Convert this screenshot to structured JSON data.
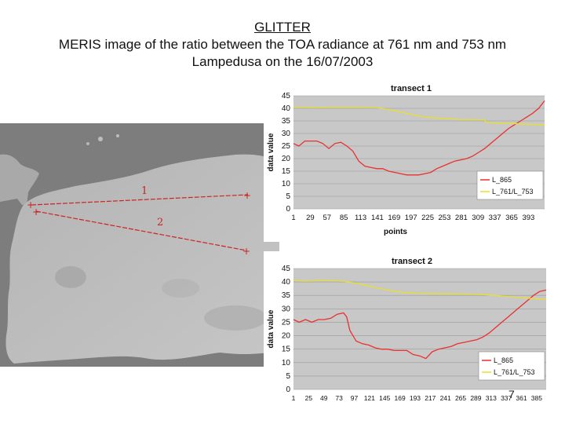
{
  "title": {
    "line1": "GLITTER",
    "line2": "MERIS image of the ratio between the TOA radiance at 761 nm and 753 nm",
    "line3": "Lampedusa on the 16/07/2003"
  },
  "map": {
    "transect_labels": [
      "1",
      "2"
    ]
  },
  "page_number": "7",
  "colors": {
    "series_red": "#e8312e",
    "series_yellow": "#e8e02a",
    "plot_bg": "#c8c8c8",
    "map_red": "#cc2222"
  },
  "chart_data": [
    {
      "type": "line",
      "title": "transect 1",
      "xlabel": "points",
      "ylabel": "data value",
      "ylim": [
        0,
        45
      ],
      "yticks": [
        0,
        5,
        10,
        15,
        20,
        25,
        30,
        35,
        40,
        45
      ],
      "xlim": [
        1,
        420
      ],
      "xticks": [
        1,
        29,
        57,
        85,
        113,
        141,
        169,
        197,
        225,
        253,
        281,
        309,
        337,
        365,
        393
      ],
      "grid": true,
      "legend": "right",
      "series": [
        {
          "name": "L_865",
          "color": "#e8312e",
          "x": [
            1,
            10,
            20,
            30,
            40,
            50,
            60,
            70,
            80,
            90,
            100,
            110,
            120,
            130,
            140,
            150,
            160,
            170,
            180,
            190,
            200,
            210,
            220,
            230,
            240,
            250,
            260,
            270,
            280,
            290,
            300,
            310,
            320,
            330,
            340,
            350,
            360,
            370,
            380,
            390,
            400,
            410,
            420
          ],
          "y": [
            26,
            25,
            27,
            27,
            27,
            26,
            24,
            26,
            26.5,
            25,
            23,
            19,
            17,
            16.5,
            16,
            16,
            15,
            14.5,
            14,
            13.5,
            13.5,
            13.5,
            14,
            14.5,
            16,
            17,
            18,
            19,
            19.5,
            20,
            21,
            22.5,
            24,
            26,
            28,
            30,
            32,
            33.5,
            35,
            36.5,
            38,
            40,
            43
          ]
        },
        {
          "name": "L_761/L_753",
          "color": "#e8e02a",
          "x": [
            1,
            20,
            40,
            60,
            80,
            100,
            120,
            140,
            160,
            180,
            200,
            220,
            240,
            260,
            280,
            300,
            320,
            322,
            340,
            360,
            380,
            400,
            420
          ],
          "y": [
            40.5,
            40.5,
            40.3,
            40.5,
            40.5,
            40.5,
            40.5,
            40.3,
            39.5,
            38.5,
            37.5,
            36.5,
            36.2,
            35.8,
            35.6,
            35.5,
            35.5,
            34.5,
            34.2,
            34,
            33.8,
            33.6,
            33.5
          ]
        }
      ]
    },
    {
      "type": "line",
      "title": "transect 2",
      "xlabel": "points",
      "ylabel": "data value",
      "ylim": [
        0,
        45
      ],
      "yticks": [
        0,
        5,
        10,
        15,
        20,
        25,
        30,
        35,
        40,
        45
      ],
      "xlim": [
        1,
        400
      ],
      "xticks": [
        1,
        25,
        49,
        73,
        97,
        121,
        145,
        169,
        193,
        217,
        241,
        265,
        289,
        313,
        337,
        361,
        385
      ],
      "grid": true,
      "legend": "right",
      "series": [
        {
          "name": "L_865",
          "color": "#e8312e",
          "x": [
            1,
            10,
            20,
            30,
            40,
            50,
            60,
            70,
            80,
            85,
            90,
            100,
            110,
            120,
            130,
            140,
            150,
            160,
            170,
            180,
            190,
            200,
            210,
            220,
            230,
            240,
            250,
            260,
            270,
            280,
            290,
            300,
            310,
            320,
            330,
            340,
            350,
            360,
            370,
            380,
            390,
            400
          ],
          "y": [
            26,
            25,
            26,
            25,
            26,
            26,
            26.5,
            28,
            28.5,
            27,
            22,
            18,
            17,
            16.5,
            15.5,
            15,
            15,
            14.5,
            14.5,
            14.5,
            13,
            12.5,
            11.5,
            14,
            15,
            15.5,
            16,
            17,
            17.5,
            18,
            18.5,
            19.5,
            21,
            23,
            25,
            27,
            29,
            31,
            33,
            35,
            36.5,
            37
          ]
        },
        {
          "name": "L_761/L_753",
          "color": "#e8e02a",
          "x": [
            1,
            20,
            40,
            60,
            80,
            100,
            120,
            140,
            160,
            180,
            200,
            220,
            240,
            260,
            280,
            300,
            320,
            340,
            360,
            380,
            400
          ],
          "y": [
            40.5,
            40.3,
            40.5,
            40.5,
            40.3,
            39.5,
            38.5,
            37.5,
            36.5,
            36,
            35.8,
            35.7,
            35.6,
            35.6,
            35.5,
            35.3,
            35,
            34.6,
            34.2,
            33.8,
            33.5
          ]
        }
      ]
    }
  ]
}
